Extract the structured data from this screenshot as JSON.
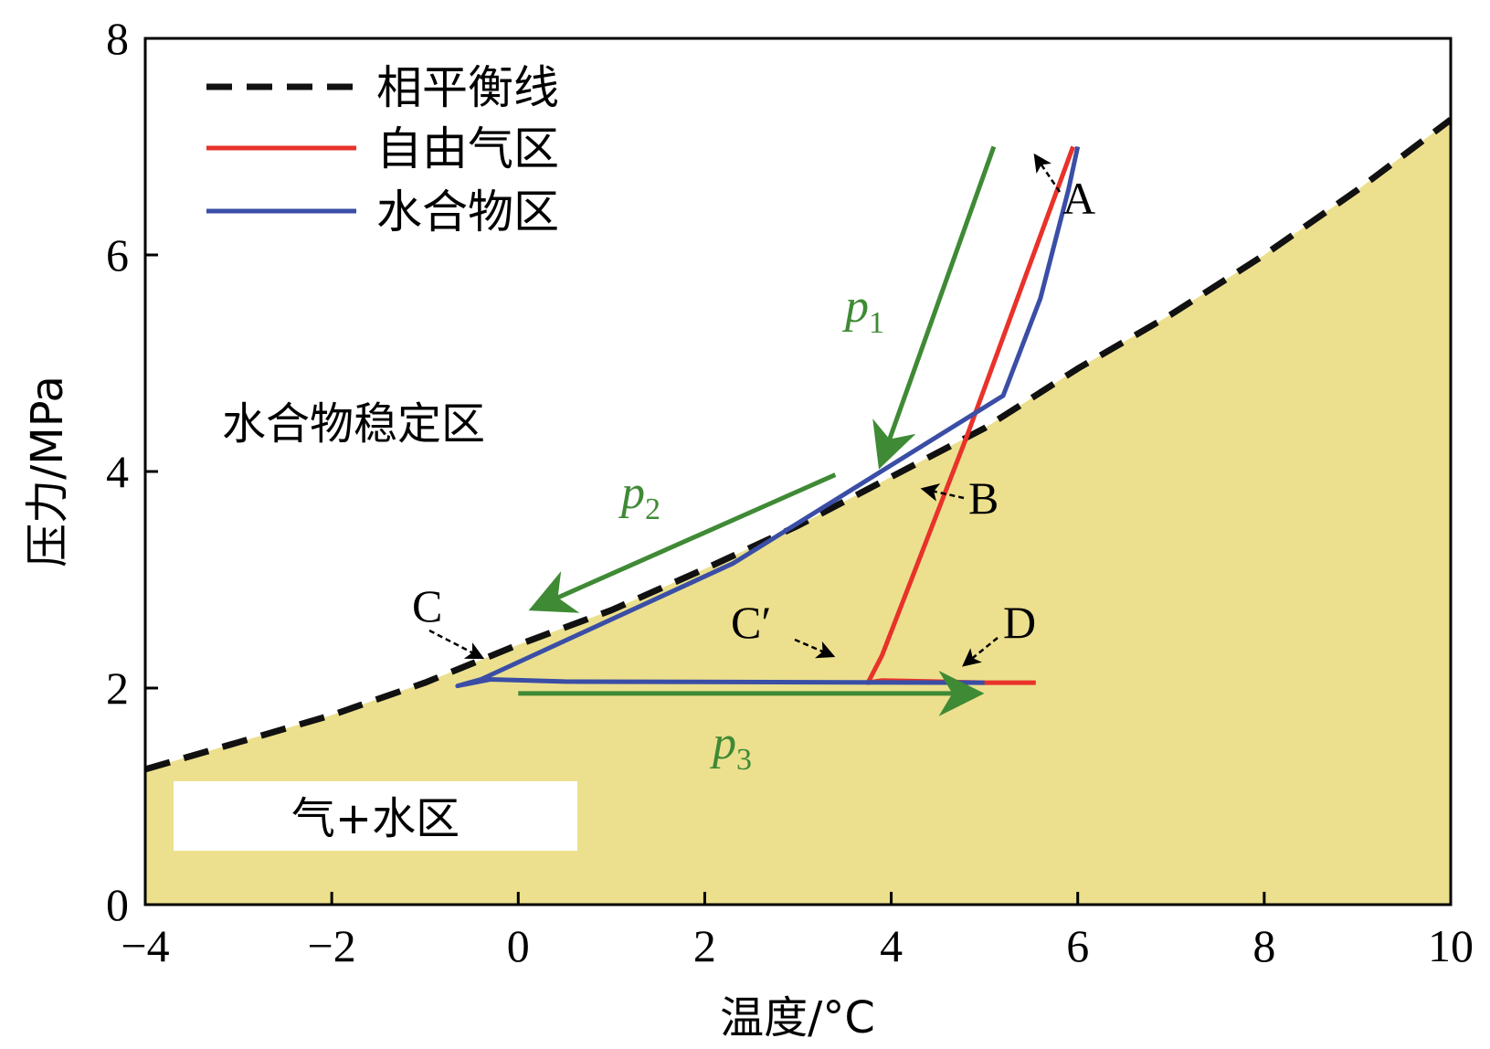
{
  "chart_data": {
    "type": "line",
    "xlabel": "温度/°C",
    "ylabel": "压力/MPa",
    "xlim": [
      -4,
      10
    ],
    "ylim": [
      0,
      8
    ],
    "xticks": [
      -4,
      -2,
      0,
      2,
      4,
      6,
      8,
      10
    ],
    "xtick_labels": [
      "−4",
      "−2",
      "0",
      "2",
      "4",
      "6",
      "8",
      "10"
    ],
    "yticks": [
      0,
      2,
      4,
      6,
      8
    ],
    "ytick_labels": [
      "0",
      "2",
      "4",
      "6",
      "8"
    ],
    "grid": false,
    "legend_position": "top-left",
    "colors": {
      "equilibrium": "#111111",
      "free_gas": "#e8322a",
      "hydrate": "#3b4ea6",
      "arrow": "#3f8a35",
      "region_fill": "#ece08e"
    },
    "series": [
      {
        "name": "相平衡线",
        "style": "dashed",
        "x": [
          -4,
          -3,
          -2,
          -1,
          0,
          1,
          2,
          3,
          4,
          5,
          6,
          7,
          8,
          9,
          10
        ],
        "y": [
          1.25,
          1.5,
          1.75,
          2.05,
          2.4,
          2.72,
          3.1,
          3.5,
          3.95,
          4.4,
          4.95,
          5.45,
          6.0,
          6.6,
          7.25
        ]
      },
      {
        "name": "自由气区",
        "x": [
          5.55,
          5.0,
          3.9,
          3.75,
          3.9,
          4.8,
          5.95
        ],
        "y": [
          2.05,
          2.05,
          2.07,
          2.05,
          2.3,
          4.3,
          7.0
        ]
      },
      {
        "name": "水合物区",
        "x": [
          6.0,
          5.9,
          5.6,
          5.2,
          2.3,
          -0.4,
          -0.65,
          -0.3,
          0.5,
          5.0
        ],
        "y": [
          7.0,
          6.6,
          5.6,
          4.7,
          3.15,
          2.08,
          2.02,
          2.08,
          2.06,
          2.05
        ]
      }
    ],
    "annotations": {
      "region_stable": "水合物稳定区",
      "region_gas_water": "气+水区",
      "point_A": "A",
      "point_B": "B",
      "point_C": "C",
      "point_C_prime": "C′",
      "point_D": "D",
      "arrow_p1": {
        "label": "p",
        "sub": "1",
        "from": [
          5.1,
          7.0
        ],
        "to": [
          3.9,
          4.1
        ]
      },
      "arrow_p2": {
        "label": "p",
        "sub": "2",
        "from": [
          3.4,
          3.97
        ],
        "to": [
          0.2,
          2.75
        ]
      },
      "arrow_p3": {
        "label": "p",
        "sub": "3",
        "from": [
          0.0,
          1.95
        ],
        "to": [
          4.9,
          1.95
        ]
      }
    }
  }
}
